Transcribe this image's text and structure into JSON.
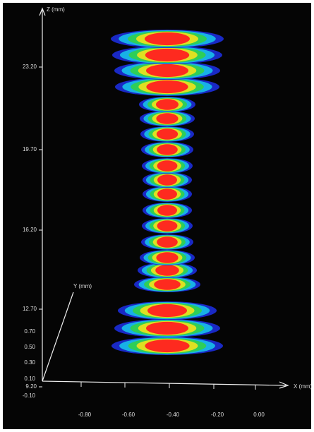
{
  "axes": {
    "z": {
      "label": "Z (mm)",
      "ticks": [
        "23.20",
        "19.70",
        "16.20",
        "12.70",
        "9.20"
      ]
    },
    "y": {
      "label": "Y (mm)",
      "ticks": [
        "0.70",
        "0.50",
        "0.30",
        "0.10",
        "-0.10"
      ]
    },
    "x": {
      "label": "X (mm)",
      "ticks": [
        "-0.80",
        "-0.60",
        "-0.40",
        "-0.20",
        "0.00"
      ]
    }
  }
}
